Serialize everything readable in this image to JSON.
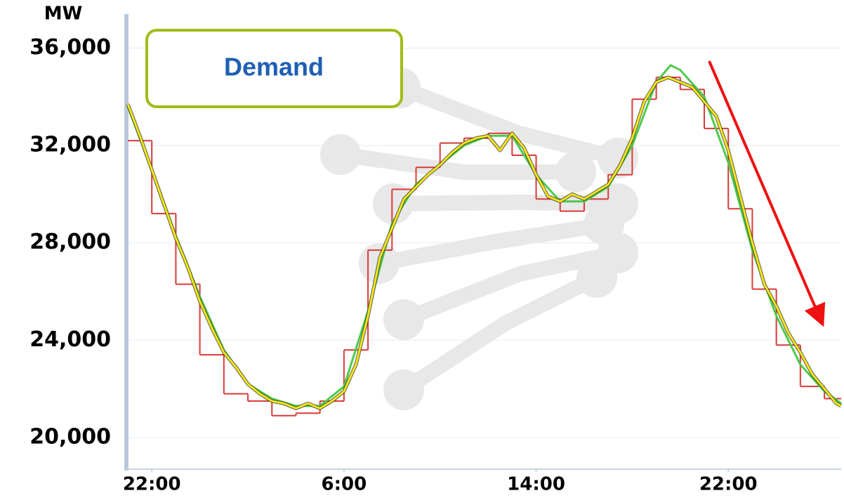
{
  "chart_data": {
    "type": "line",
    "y_label": "MW",
    "annotation": "Demand",
    "ylim": [
      18700,
      37400
    ],
    "yticks": [
      {
        "value": 20000,
        "label": "20,000"
      },
      {
        "value": 24000,
        "label": "24,000"
      },
      {
        "value": 28000,
        "label": "28,000"
      },
      {
        "value": 32000,
        "label": "32,000"
      },
      {
        "value": 36000,
        "label": "36,000"
      }
    ],
    "xlim": [
      -1,
      28.7
    ],
    "xticks": [
      {
        "value": 0,
        "label": "22:00"
      },
      {
        "value": 8,
        "label": "6:00"
      },
      {
        "value": 16,
        "label": "14:00"
      },
      {
        "value": 24,
        "label": "22:00"
      }
    ],
    "grid": true,
    "series": [
      {
        "color": "#d83a3a",
        "step": true,
        "x": [
          -1,
          0,
          1,
          2,
          3,
          4,
          5,
          6,
          7,
          8,
          9,
          10,
          11,
          12,
          13,
          14,
          15,
          16,
          17,
          18,
          19,
          20,
          21,
          22,
          23,
          24,
          25,
          26,
          27,
          28
        ],
        "values": [
          32200,
          29200,
          26300,
          23400,
          21800,
          21500,
          20900,
          21000,
          21500,
          23600,
          27700,
          30200,
          31100,
          32100,
          32300,
          32500,
          31600,
          29800,
          29300,
          29800,
          30800,
          33900,
          34800,
          34300,
          32700,
          29400,
          26100,
          23800,
          22100,
          21600
        ]
      },
      {
        "color": "#4cc94c",
        "step": false,
        "x": [
          -1,
          0,
          1,
          2,
          3,
          4,
          5,
          6,
          7,
          8,
          9,
          10,
          11,
          12,
          13,
          14,
          15,
          16,
          17,
          18,
          19,
          20,
          21,
          21.6,
          22,
          23,
          24,
          25,
          26,
          27,
          28,
          28.7
        ],
        "values": [
          33600,
          31000,
          28300,
          25800,
          23600,
          22200,
          21600,
          21300,
          21300,
          22100,
          25200,
          28800,
          30400,
          31200,
          32000,
          32400,
          32400,
          30800,
          29700,
          29700,
          30300,
          32000,
          34600,
          35300,
          35100,
          34000,
          31300,
          27700,
          25000,
          23000,
          21900,
          21400
        ]
      },
      {
        "color": "#f5e614",
        "step": false,
        "x": [
          -1,
          -0.5,
          0,
          0.5,
          1,
          1.5,
          2,
          2.5,
          3,
          3.5,
          4,
          4.5,
          5,
          5.5,
          6,
          6.5,
          7,
          7.5,
          8,
          8.5,
          9,
          9.5,
          10,
          10.5,
          11,
          11.5,
          12,
          12.5,
          13,
          13.5,
          14,
          14.5,
          15,
          15.5,
          16,
          16.5,
          17,
          17.5,
          18,
          18.5,
          19,
          19.5,
          20,
          20.5,
          21,
          21.5,
          22,
          22.5,
          23,
          23.5,
          24,
          24.5,
          25,
          25.5,
          26,
          26.5,
          27,
          27.5,
          28,
          28.5,
          28.7
        ],
        "values": [
          33700,
          32400,
          31000,
          29600,
          28200,
          27000,
          25600,
          24500,
          23500,
          22900,
          22200,
          21800,
          21500,
          21400,
          21200,
          21400,
          21200,
          21500,
          21900,
          23000,
          25000,
          27400,
          28600,
          29800,
          30300,
          30800,
          31200,
          31700,
          32100,
          32300,
          32400,
          31800,
          32500,
          31900,
          30800,
          29900,
          29700,
          30000,
          29800,
          30100,
          30400,
          31200,
          32300,
          33800,
          34600,
          34800,
          34600,
          34400,
          33800,
          33200,
          31800,
          29900,
          28000,
          26300,
          25400,
          24300,
          23500,
          22600,
          22000,
          21400,
          21300
        ]
      }
    ]
  }
}
